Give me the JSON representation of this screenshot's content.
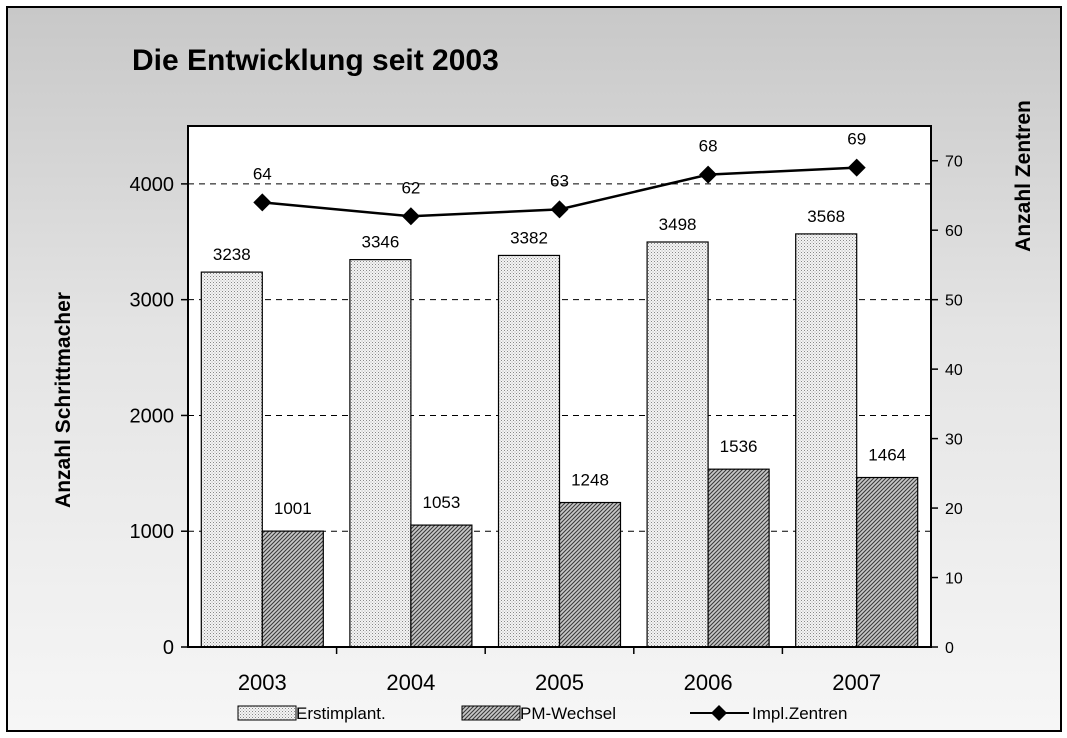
{
  "chart_data": {
    "type": "bar",
    "title": "Die Entwicklung seit 2003",
    "categories": [
      "2003",
      "2004",
      "2005",
      "2006",
      "2007"
    ],
    "series": [
      {
        "name": "Erstimplant.",
        "type": "bar",
        "axis": "left",
        "values": [
          3238,
          3346,
          3382,
          3498,
          3568
        ]
      },
      {
        "name": "PM-Wechsel",
        "type": "bar",
        "axis": "left",
        "values": [
          1001,
          1053,
          1248,
          1536,
          1464
        ]
      },
      {
        "name": "Impl.Zentren",
        "type": "line",
        "axis": "right",
        "values": [
          64,
          62,
          63,
          68,
          69
        ]
      }
    ],
    "ylabel": "Anzahl Schrittmacher",
    "y2label": "Anzahl Zentren",
    "ylim": [
      0,
      4500
    ],
    "y2lim": [
      0,
      75
    ],
    "yticks": [
      "0",
      "1000",
      "2000",
      "3000",
      "4000"
    ],
    "y2ticks": [
      "0",
      "10",
      "20",
      "30",
      "40",
      "50",
      "60",
      "70"
    ],
    "grid": "dashed horizontal",
    "legend_position": "bottom"
  }
}
